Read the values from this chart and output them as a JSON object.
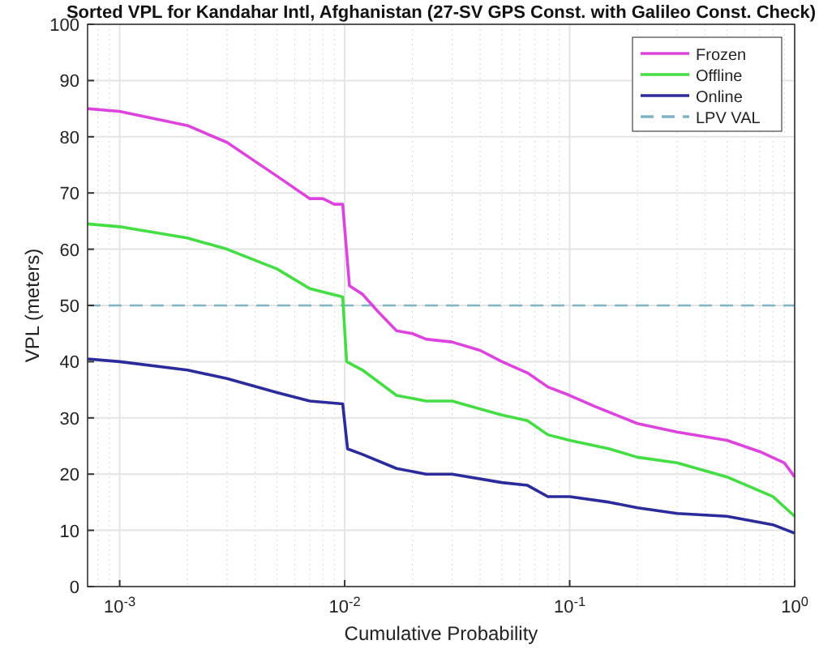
{
  "chart_data": {
    "type": "line",
    "title": "Sorted VPL for Kandahar Intl, Afghanistan (27-SV GPS Const. with Galileo Const. Check)",
    "xlabel": "Cumulative Probability",
    "ylabel": "VPL (meters)",
    "log": "x",
    "grid": true,
    "legend": "top right",
    "xlim": [
      0.00072,
      1
    ],
    "ylim": [
      0,
      100
    ],
    "xticks": [
      {
        "value": 0.001,
        "label": "10$^{-3}$"
      },
      {
        "value": 0.01,
        "label": "10$^{-2}$"
      },
      {
        "value": 0.1,
        "label": "10$^{-1}$"
      },
      {
        "value": 1,
        "label": "10$^{0}$"
      }
    ],
    "yticks": [
      0,
      10,
      20,
      30,
      40,
      50,
      60,
      70,
      80,
      90,
      100
    ],
    "series": [
      {
        "name": "Frozen",
        "color": "#dd44dd",
        "x": [
          0.00072,
          0.001,
          0.002,
          0.003,
          0.005,
          0.007,
          0.008,
          0.009,
          0.0098,
          0.0105,
          0.012,
          0.014,
          0.017,
          0.02,
          0.023,
          0.03,
          0.04,
          0.05,
          0.065,
          0.08,
          0.1,
          0.13,
          0.2,
          0.3,
          0.5,
          0.7,
          0.9,
          1
        ],
        "values": [
          85,
          84.5,
          82,
          79,
          73,
          69,
          69,
          68,
          68,
          53.5,
          52,
          49,
          45.5,
          45,
          44,
          43.5,
          42,
          40,
          38,
          35.5,
          34,
          32,
          29,
          27.5,
          26,
          24,
          22,
          19.5
        ]
      },
      {
        "name": "Offline",
        "color": "#44dd44",
        "x": [
          0.00072,
          0.001,
          0.002,
          0.003,
          0.005,
          0.007,
          0.0098,
          0.0102,
          0.012,
          0.017,
          0.023,
          0.03,
          0.05,
          0.065,
          0.08,
          0.1,
          0.15,
          0.2,
          0.3,
          0.5,
          0.8,
          1
        ],
        "values": [
          64.5,
          64,
          62,
          60,
          56.5,
          53,
          51.5,
          40,
          38.5,
          34,
          33,
          33,
          30.5,
          29.5,
          27,
          26,
          24.5,
          23,
          22,
          19.5,
          16,
          12.5
        ]
      },
      {
        "name": "Online",
        "color": "#2b2b9c",
        "x": [
          0.00072,
          0.001,
          0.002,
          0.003,
          0.005,
          0.007,
          0.0098,
          0.0103,
          0.012,
          0.017,
          0.023,
          0.03,
          0.05,
          0.065,
          0.08,
          0.1,
          0.15,
          0.2,
          0.3,
          0.5,
          0.8,
          1
        ],
        "values": [
          40.5,
          40,
          38.5,
          37,
          34.5,
          33,
          32.5,
          24.5,
          23.5,
          21,
          20,
          20,
          18.5,
          18,
          16,
          16,
          15,
          14,
          13,
          12.5,
          11,
          9.5
        ]
      }
    ],
    "ref_lines": [
      {
        "axis": "y",
        "value": 50,
        "label": "LPV VAL",
        "color": "#80b4c4",
        "line_style": "dashed"
      }
    ]
  }
}
